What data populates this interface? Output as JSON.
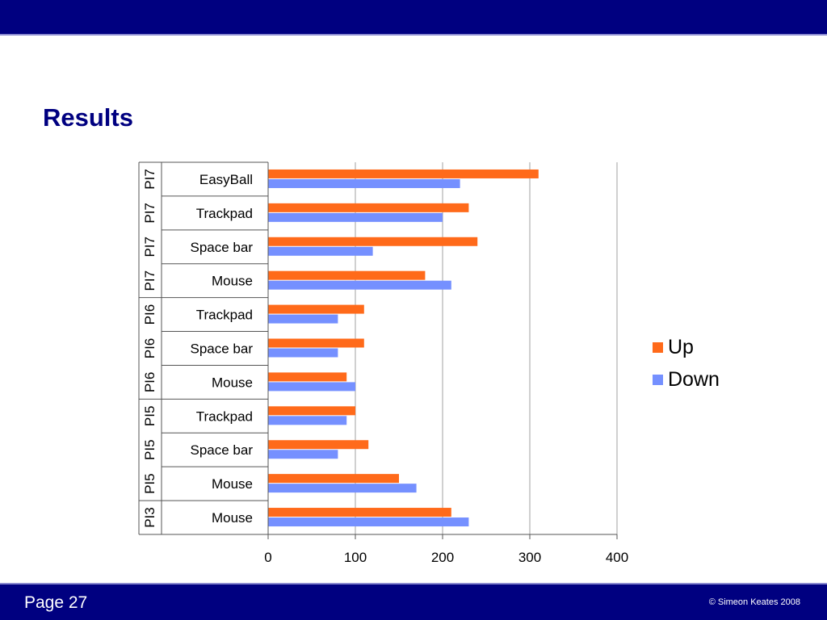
{
  "slide": {
    "title": "Results",
    "page_label": "Page 27",
    "copyright": "© Simeon Keates 2008"
  },
  "colors": {
    "header_bar": "#000080",
    "title": "#000080",
    "up": "#ff6a1a",
    "down": "#7590ff"
  },
  "chart_data": {
    "type": "bar",
    "orientation": "horizontal",
    "groups": [
      "PI7",
      "PI7",
      "PI7",
      "PI7",
      "PI6",
      "PI6",
      "PI6",
      "PI5",
      "PI5",
      "PI5",
      "PI3"
    ],
    "categories": [
      "EasyBall",
      "Trackpad",
      "Space bar",
      "Mouse",
      "Trackpad",
      "Space bar",
      "Mouse",
      "Trackpad",
      "Space bar",
      "Mouse",
      "Mouse"
    ],
    "series": [
      {
        "name": "Up",
        "values": [
          310,
          230,
          240,
          180,
          110,
          110,
          90,
          100,
          115,
          150,
          210
        ]
      },
      {
        "name": "Down",
        "values": [
          220,
          200,
          120,
          210,
          80,
          80,
          100,
          90,
          80,
          170,
          230
        ]
      }
    ],
    "xlim": [
      0,
      400
    ],
    "x_ticks": [
      "0",
      "100",
      "200",
      "300",
      "400"
    ],
    "grid": true,
    "legend_position": "right"
  }
}
